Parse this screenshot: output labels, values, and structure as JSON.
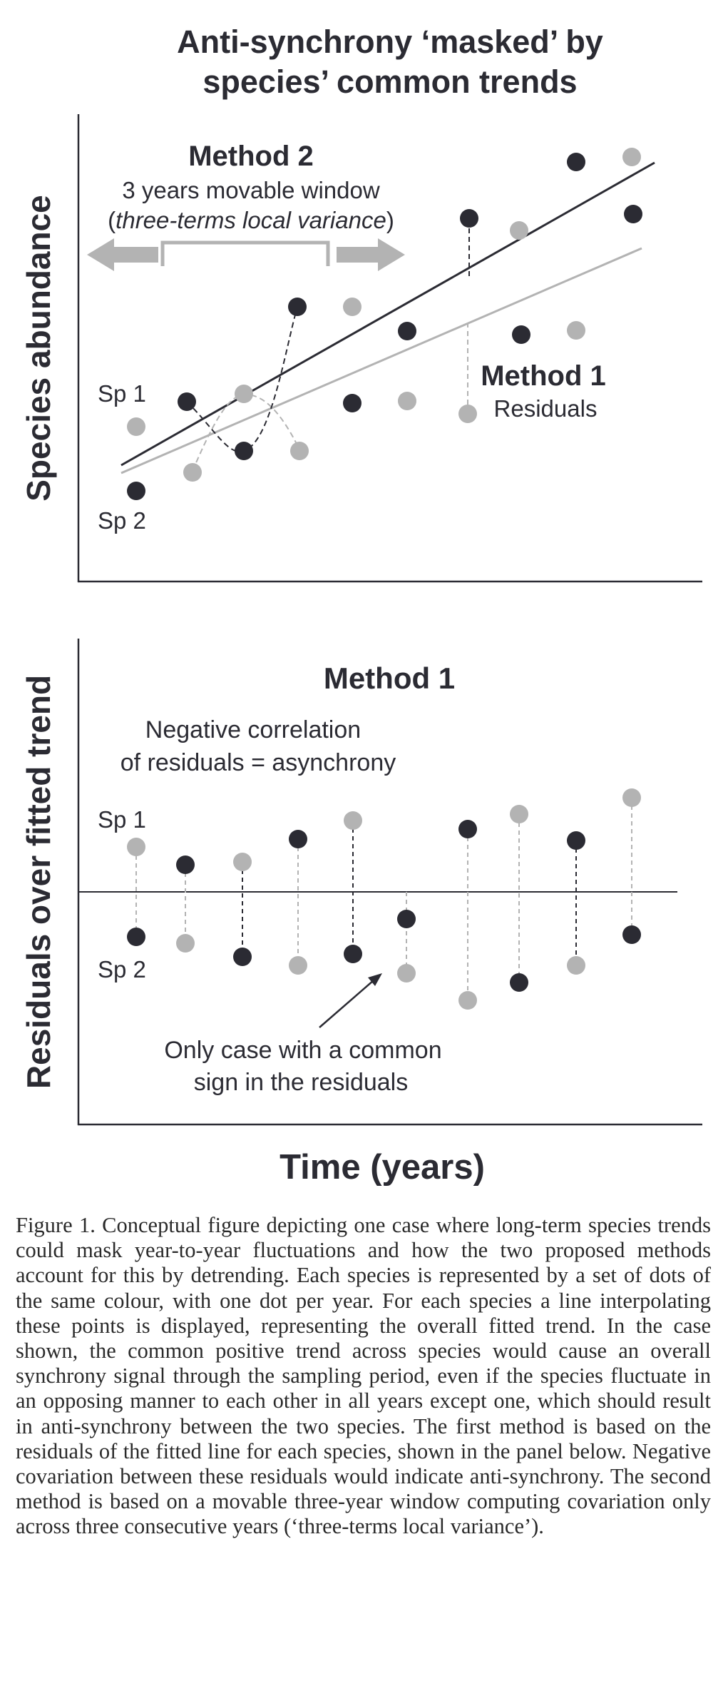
{
  "figure": {
    "title_line1": "Anti-synchrony ‘masked’ by",
    "title_line2": "species’ common trends",
    "top_panel": {
      "y_axis_label": "Species abundance",
      "method2_title": "Method 2",
      "method2_subtitle": "3 years movable window",
      "method2_detail": "three-terms local variance",
      "method1_title": "Method 1",
      "method1_subtitle": "Residuals",
      "sp1_label": "Sp 1",
      "sp2_label": "Sp 2"
    },
    "bottom_panel": {
      "y_axis_label": "Residuals over fitted trend",
      "title": "Method 1",
      "note_line1": "Negative correlation",
      "note_line2": "of residuals = asynchrony",
      "sp1_label": "Sp 1",
      "sp2_label": "Sp 2",
      "annotation_line1": "Only case with a common",
      "annotation_line2": "sign in the residuals"
    },
    "x_axis_label": "Time (years)",
    "colors": {
      "sp1": "#b3b3b3",
      "sp2": "#2b2b33"
    }
  },
  "caption": "Figure 1. Conceptual figure depicting one case where long-term species trends could mask year-to-year fluctuations and how the two proposed methods account for this by detrending. Each species is represented by a set of dots of the same colour, with one dot per year. For each species a line interpolating these points is displayed, representing the overall fitted trend. In the case shown, the common positive trend across species would cause an overall synchrony signal through the sampling period, even if the species fluctuate in an opposing manner to each other in all years except one, which should result in anti-synchrony between the two species. The first method is based on the residuals of the fitted line for each species, shown in the panel below. Negative covariation between these residuals would indicate anti-synchrony. The second method is based on a movable three-year window computing covariation only across three consecutive years (‘three-terms local variance’)."
}
